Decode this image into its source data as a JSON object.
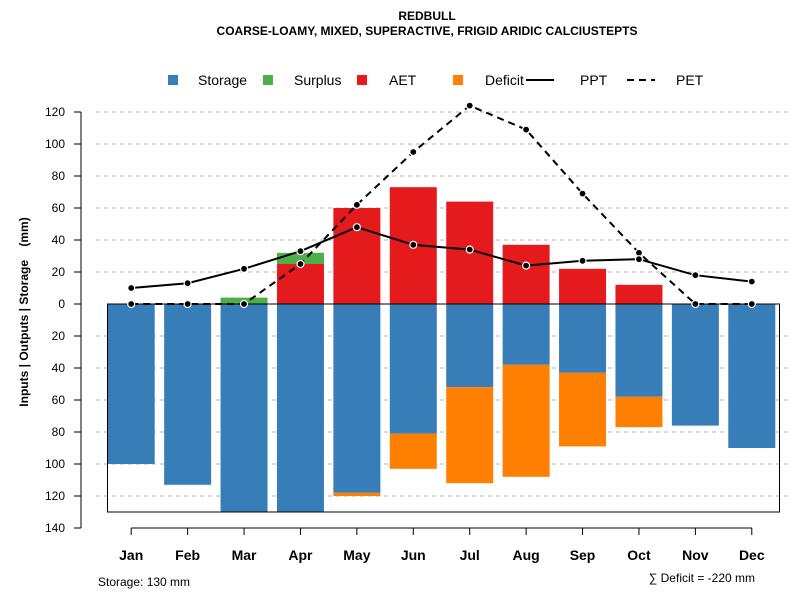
{
  "chart_data": {
    "type": "bar",
    "title": "REDBULL",
    "subtitle": "COARSE-LOAMY, MIXED, SUPERACTIVE, FRIGID ARIDIC CALCIUSTEPTS",
    "ylabel": "Inputs | Outputs | Storage    (mm)",
    "ylim": [
      -140,
      130
    ],
    "yticks": [
      120,
      100,
      80,
      60,
      40,
      20,
      0,
      -20,
      -40,
      -60,
      -80,
      -100,
      -120,
      -140
    ],
    "ytick_labels": [
      "120",
      "100",
      "80",
      "60",
      "40",
      "20",
      "0",
      "20",
      "40",
      "60",
      "80",
      "100",
      "120",
      "140"
    ],
    "grid": true,
    "legend_position": "top",
    "categories": [
      "Jan",
      "Feb",
      "Mar",
      "Apr",
      "May",
      "Jun",
      "Jul",
      "Aug",
      "Sep",
      "Oct",
      "Nov",
      "Dec"
    ],
    "colors": {
      "storage": "#377eb8",
      "surplus": "#4daf4a",
      "aet": "#e41a1c",
      "deficit": "#ff7f00",
      "line": "#000000"
    },
    "legend": [
      {
        "key": "storage",
        "label": "Storage",
        "kind": "box"
      },
      {
        "key": "surplus",
        "label": "Surplus",
        "kind": "box"
      },
      {
        "key": "aet",
        "label": "AET",
        "kind": "box"
      },
      {
        "key": "deficit",
        "label": "Deficit",
        "kind": "box"
      },
      {
        "key": "ppt",
        "label": "PPT",
        "kind": "solid"
      },
      {
        "key": "pet",
        "label": "PET",
        "kind": "dashed"
      }
    ],
    "series": [
      {
        "name": "Storage",
        "key": "storage",
        "values": [
          100,
          113,
          130,
          130,
          118,
          81,
          52,
          38,
          43,
          58,
          76,
          90
        ]
      },
      {
        "name": "Deficit",
        "key": "deficit",
        "values": [
          0,
          0,
          0,
          0,
          2,
          22,
          60,
          70,
          46,
          19,
          0,
          0
        ]
      },
      {
        "name": "AET",
        "key": "aet",
        "values": [
          0,
          0,
          0,
          25,
          60,
          73,
          64,
          37,
          22,
          12,
          0,
          0
        ]
      },
      {
        "name": "Surplus",
        "key": "surplus",
        "values": [
          0,
          0,
          4,
          7,
          0,
          0,
          0,
          0,
          0,
          0,
          0,
          0
        ]
      },
      {
        "name": "PPT",
        "key": "ppt",
        "values": [
          10,
          13,
          22,
          33,
          48,
          37,
          34,
          24,
          27,
          28,
          18,
          14
        ]
      },
      {
        "name": "PET",
        "key": "pet",
        "values": [
          0,
          0,
          0,
          25,
          62,
          95,
          124,
          109,
          69,
          32,
          0,
          0
        ]
      }
    ],
    "storage_capacity": 130,
    "annotations": {
      "storage_note": "Storage: 130 mm",
      "deficit_note": "∑ Deficit = -220 mm"
    }
  }
}
